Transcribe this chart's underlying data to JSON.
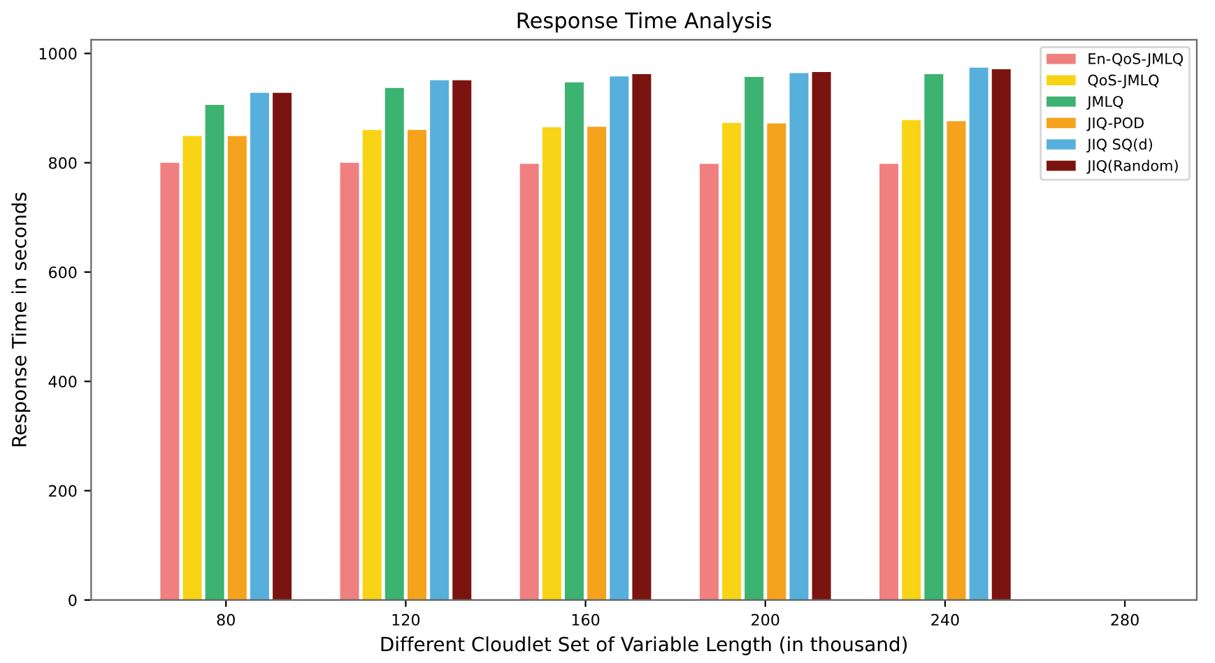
{
  "chart_data": {
    "type": "bar",
    "title": "Response Time Analysis",
    "xlabel": "Different Cloudlet Set of Variable Length (in thousand)",
    "ylabel": "Response Time in seconds",
    "categories": [
      "80",
      "120",
      "160",
      "200",
      "240",
      "280"
    ],
    "series": [
      {
        "name": "En-QoS-JMLQ",
        "color": "#f08080",
        "values": [
          800,
          800,
          798,
          798,
          798,
          null
        ]
      },
      {
        "name": "QoS-JMLQ",
        "color": "#f9d316",
        "values": [
          849,
          860,
          865,
          873,
          878,
          null
        ]
      },
      {
        "name": "JMLQ",
        "color": "#3cb371",
        "values": [
          906,
          937,
          947,
          957,
          962,
          null
        ]
      },
      {
        "name": "JIQ-POD",
        "color": "#f5a21d",
        "values": [
          849,
          860,
          866,
          872,
          876,
          null
        ]
      },
      {
        "name": "JIQ SQ(d)",
        "color": "#57b0dc",
        "values": [
          928,
          951,
          958,
          964,
          974,
          null
        ]
      },
      {
        "name": "JIQ(Random)",
        "color": "#7b1410",
        "values": [
          928,
          951,
          962,
          966,
          971,
          null
        ]
      }
    ],
    "ylim": [
      0,
      1025
    ],
    "yticks": [
      0,
      200,
      400,
      600,
      800,
      1000
    ],
    "grid": false,
    "legend": "top right"
  }
}
